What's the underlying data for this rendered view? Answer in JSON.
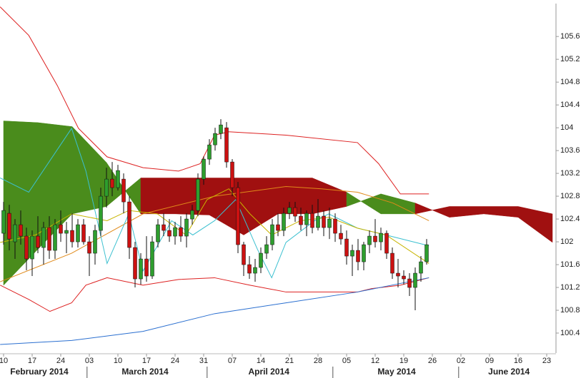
{
  "chart_data": {
    "type": "candlestick",
    "ylim": [
      100.05,
      106.24
    ],
    "yticks": [
      105.6,
      105.2,
      104.8,
      104.4,
      104,
      103.6,
      103.2,
      102.8,
      102.4,
      102,
      101.6,
      101.2,
      100.8,
      100.4
    ],
    "xlim": [
      -0.625,
      96.625
    ],
    "xticks": [
      {
        "value": 0,
        "label": "10"
      },
      {
        "value": 5,
        "label": "17"
      },
      {
        "value": 10,
        "label": "24"
      },
      {
        "value": 15,
        "label": "03"
      },
      {
        "value": 20,
        "label": "10"
      },
      {
        "value": 25,
        "label": "17"
      },
      {
        "value": 30,
        "label": "24"
      },
      {
        "value": 35,
        "label": "31"
      },
      {
        "value": 40,
        "label": "07"
      },
      {
        "value": 45,
        "label": "14"
      },
      {
        "value": 50,
        "label": "21"
      },
      {
        "value": 55,
        "label": "28"
      },
      {
        "value": 60,
        "label": "05"
      },
      {
        "value": 65,
        "label": "12"
      },
      {
        "value": 70,
        "label": "19"
      },
      {
        "value": 75,
        "label": "26"
      },
      {
        "value": 80,
        "label": "02"
      },
      {
        "value": 85,
        "label": "09"
      },
      {
        "value": 90,
        "label": "16"
      },
      {
        "value": 95,
        "label": "23"
      }
    ],
    "months": [
      {
        "value": 6.25,
        "label": "February 2014"
      },
      {
        "value": 24.75,
        "label": "March 2014"
      },
      {
        "value": 46.4,
        "label": "April 2014"
      },
      {
        "value": 68.75,
        "label": "May 2014"
      },
      {
        "value": 88.4,
        "label": "June 2014"
      }
    ],
    "month_breaks": [
      14.6,
      35.6,
      57.6,
      79.6
    ],
    "up_color": "#2e9e2e",
    "down_color": "#cc1111",
    "candles": {
      "open": [
        102.15,
        102.5,
        102.0,
        102.3,
        102.1,
        101.7,
        102.1,
        101.9,
        102.25,
        101.85,
        102.3,
        102.15,
        102.2,
        102.0,
        102.3,
        102.0,
        101.8,
        102.2,
        102.8,
        103.1,
        102.95,
        103.1,
        102.7,
        101.9,
        101.35,
        101.7,
        101.4,
        102.0,
        102.3,
        102.2,
        102.1,
        102.25,
        102.1,
        102.4,
        102.55,
        103.1,
        103.45,
        103.7,
        103.9,
        104.0,
        103.4,
        102.95,
        101.95,
        101.6,
        101.45,
        101.55,
        101.8,
        101.95,
        102.3,
        102.2,
        102.5,
        102.6,
        102.45,
        102.3,
        102.5,
        102.25,
        102.45,
        102.25,
        102.4,
        102.15,
        102.05,
        101.75,
        101.85,
        101.65,
        101.95,
        102.1,
        102.0,
        102.15,
        101.8,
        101.45,
        101.4,
        101.35,
        101.2,
        101.45,
        101.65
      ],
      "high": [
        102.7,
        102.65,
        102.4,
        102.55,
        102.25,
        102.2,
        102.45,
        102.35,
        102.45,
        102.4,
        102.55,
        102.35,
        102.5,
        102.4,
        102.4,
        102.1,
        102.3,
        102.95,
        103.3,
        103.4,
        103.35,
        103.2,
        102.8,
        102.0,
        101.8,
        102.1,
        102.1,
        102.4,
        102.5,
        102.4,
        102.35,
        102.45,
        102.5,
        102.65,
        103.2,
        103.5,
        103.8,
        104.0,
        104.15,
        104.1,
        103.45,
        103.05,
        102.0,
        101.75,
        101.7,
        101.9,
        102.1,
        102.4,
        102.5,
        102.6,
        102.7,
        102.7,
        102.6,
        102.55,
        102.65,
        102.75,
        102.55,
        102.6,
        102.5,
        102.3,
        102.2,
        101.95,
        102.05,
        102.0,
        102.2,
        102.4,
        102.25,
        102.2,
        101.9,
        101.7,
        101.5,
        101.45,
        101.55,
        101.75,
        102.05
      ],
      "low": [
        101.95,
        101.85,
        101.7,
        101.95,
        101.5,
        101.4,
        101.8,
        101.6,
        101.7,
        101.7,
        102.0,
        101.8,
        101.9,
        101.9,
        101.95,
        101.4,
        101.6,
        102.1,
        102.6,
        102.8,
        102.9,
        102.5,
        101.7,
        101.2,
        101.25,
        101.3,
        101.35,
        101.9,
        102.1,
        102.0,
        101.95,
        102.0,
        101.9,
        102.3,
        102.45,
        103.0,
        103.35,
        103.6,
        103.8,
        103.3,
        102.8,
        101.8,
        101.4,
        101.35,
        101.3,
        101.45,
        101.7,
        101.85,
        102.1,
        102.1,
        102.4,
        102.35,
        102.2,
        102.1,
        102.15,
        102.2,
        102.1,
        102.05,
        102.0,
        101.95,
        101.6,
        101.4,
        101.5,
        101.5,
        101.8,
        101.9,
        101.85,
        101.7,
        101.35,
        101.2,
        101.25,
        101.05,
        100.8,
        101.3,
        101.6
      ],
      "close": [
        102.55,
        102.05,
        102.3,
        102.1,
        101.7,
        102.1,
        101.9,
        102.25,
        101.85,
        102.3,
        102.15,
        102.2,
        102.0,
        102.3,
        102.0,
        101.8,
        102.2,
        102.8,
        103.1,
        102.95,
        103.25,
        102.7,
        101.9,
        101.35,
        101.7,
        101.4,
        102.0,
        102.3,
        102.2,
        102.1,
        102.25,
        102.1,
        102.4,
        102.55,
        103.1,
        103.45,
        103.7,
        103.9,
        104.05,
        103.4,
        102.95,
        101.95,
        101.6,
        101.45,
        101.55,
        101.8,
        101.95,
        102.3,
        102.2,
        102.5,
        102.6,
        102.45,
        102.3,
        102.5,
        102.25,
        102.45,
        102.25,
        102.4,
        102.15,
        102.05,
        101.75,
        101.85,
        101.65,
        101.95,
        102.1,
        102.0,
        102.15,
        101.8,
        101.45,
        101.4,
        101.35,
        101.2,
        101.45,
        101.65,
        101.95
      ]
    },
    "cloud": {
      "up_color": "#4a8c1c",
      "down_color": "#a01010",
      "x": [
        0,
        6,
        12,
        18,
        24,
        30,
        36,
        42,
        48,
        54,
        60,
        66,
        72,
        78,
        84,
        90,
        96
      ],
      "span_a": [
        104.12,
        104.09,
        104.02,
        103.39,
        102.49,
        102.49,
        102.47,
        102.12,
        102.49,
        102.49,
        102.62,
        102.84,
        102.68,
        102.43,
        102.49,
        102.43,
        101.99
      ],
      "span_b": [
        101.24,
        101.87,
        102.49,
        102.62,
        103.12,
        103.12,
        103.12,
        103.12,
        103.12,
        103.12,
        102.87,
        102.49,
        102.49,
        102.62,
        102.62,
        102.62,
        102.49
      ]
    },
    "lines": [
      {
        "color": "#dd2020",
        "x": [
          -0.6,
          4.4,
          9.4,
          13.1,
          18.1,
          24.4,
          30.6,
          34.4,
          36.9,
          39.4,
          49.4,
          61.9,
          65.6,
          69.4,
          74.4
        ],
        "values": [
          106.12,
          105.62,
          104.74,
          103.99,
          103.49,
          103.3,
          103.24,
          103.37,
          103.87,
          103.93,
          103.87,
          103.74,
          103.37,
          102.84,
          102.84
        ]
      },
      {
        "color": "#dd2020",
        "x": [
          -0.6,
          4.4,
          8.1,
          11.9,
          14.4,
          18.1,
          24.4,
          30.6,
          36.9,
          43.1,
          49.4,
          55.6,
          61.9,
          64.4,
          69.4,
          74.4
        ],
        "values": [
          101.24,
          100.99,
          100.78,
          100.93,
          101.24,
          101.37,
          101.24,
          101.34,
          101.37,
          101.24,
          101.12,
          101.12,
          101.12,
          101.18,
          101.24,
          101.37
        ]
      },
      {
        "color": "#2a6fd0",
        "x": [
          -0.6,
          11.9,
          24.4,
          36.9,
          49.4,
          61.9,
          69.4,
          74.4
        ],
        "values": [
          100.2,
          100.27,
          100.43,
          100.74,
          100.93,
          101.12,
          101.27,
          101.37
        ]
      },
      {
        "color": "#e08a1a",
        "x": [
          -0.6,
          11.9,
          24.4,
          36.9,
          49.4,
          55.6,
          61.9,
          68.1,
          74.4
        ],
        "values": [
          101.3,
          101.8,
          102.49,
          102.8,
          102.97,
          102.93,
          102.87,
          102.68,
          102.37
        ]
      },
      {
        "color": "#3cc0d0",
        "x": [
          -0.6,
          4.4,
          11.9,
          14.4,
          18.1,
          21.9,
          24.4,
          29.4,
          33.1,
          36.9,
          40.6,
          44.4,
          46.9,
          49.4,
          54.4,
          56.9,
          61.9,
          66.9,
          74.4
        ],
        "values": [
          103.12,
          102.87,
          103.99,
          103.24,
          101.62,
          102.49,
          101.49,
          102.37,
          102.12,
          102.37,
          102.74,
          101.87,
          101.37,
          101.99,
          102.37,
          102.49,
          102.24,
          102.12,
          101.93
        ]
      },
      {
        "color": "#c8b400",
        "x": [
          -0.6,
          5.6,
          11.9,
          18.1,
          21.9,
          26.9,
          31.9,
          35.6,
          39.4,
          43.1,
          46.9,
          51.9,
          56.9,
          61.9,
          66.9,
          74.4
        ],
        "values": [
          101.99,
          102.12,
          102.49,
          102.37,
          102.55,
          102.49,
          102.12,
          102.74,
          102.93,
          102.49,
          102.12,
          102.37,
          102.43,
          102.24,
          102.12,
          101.62
        ]
      }
    ]
  }
}
